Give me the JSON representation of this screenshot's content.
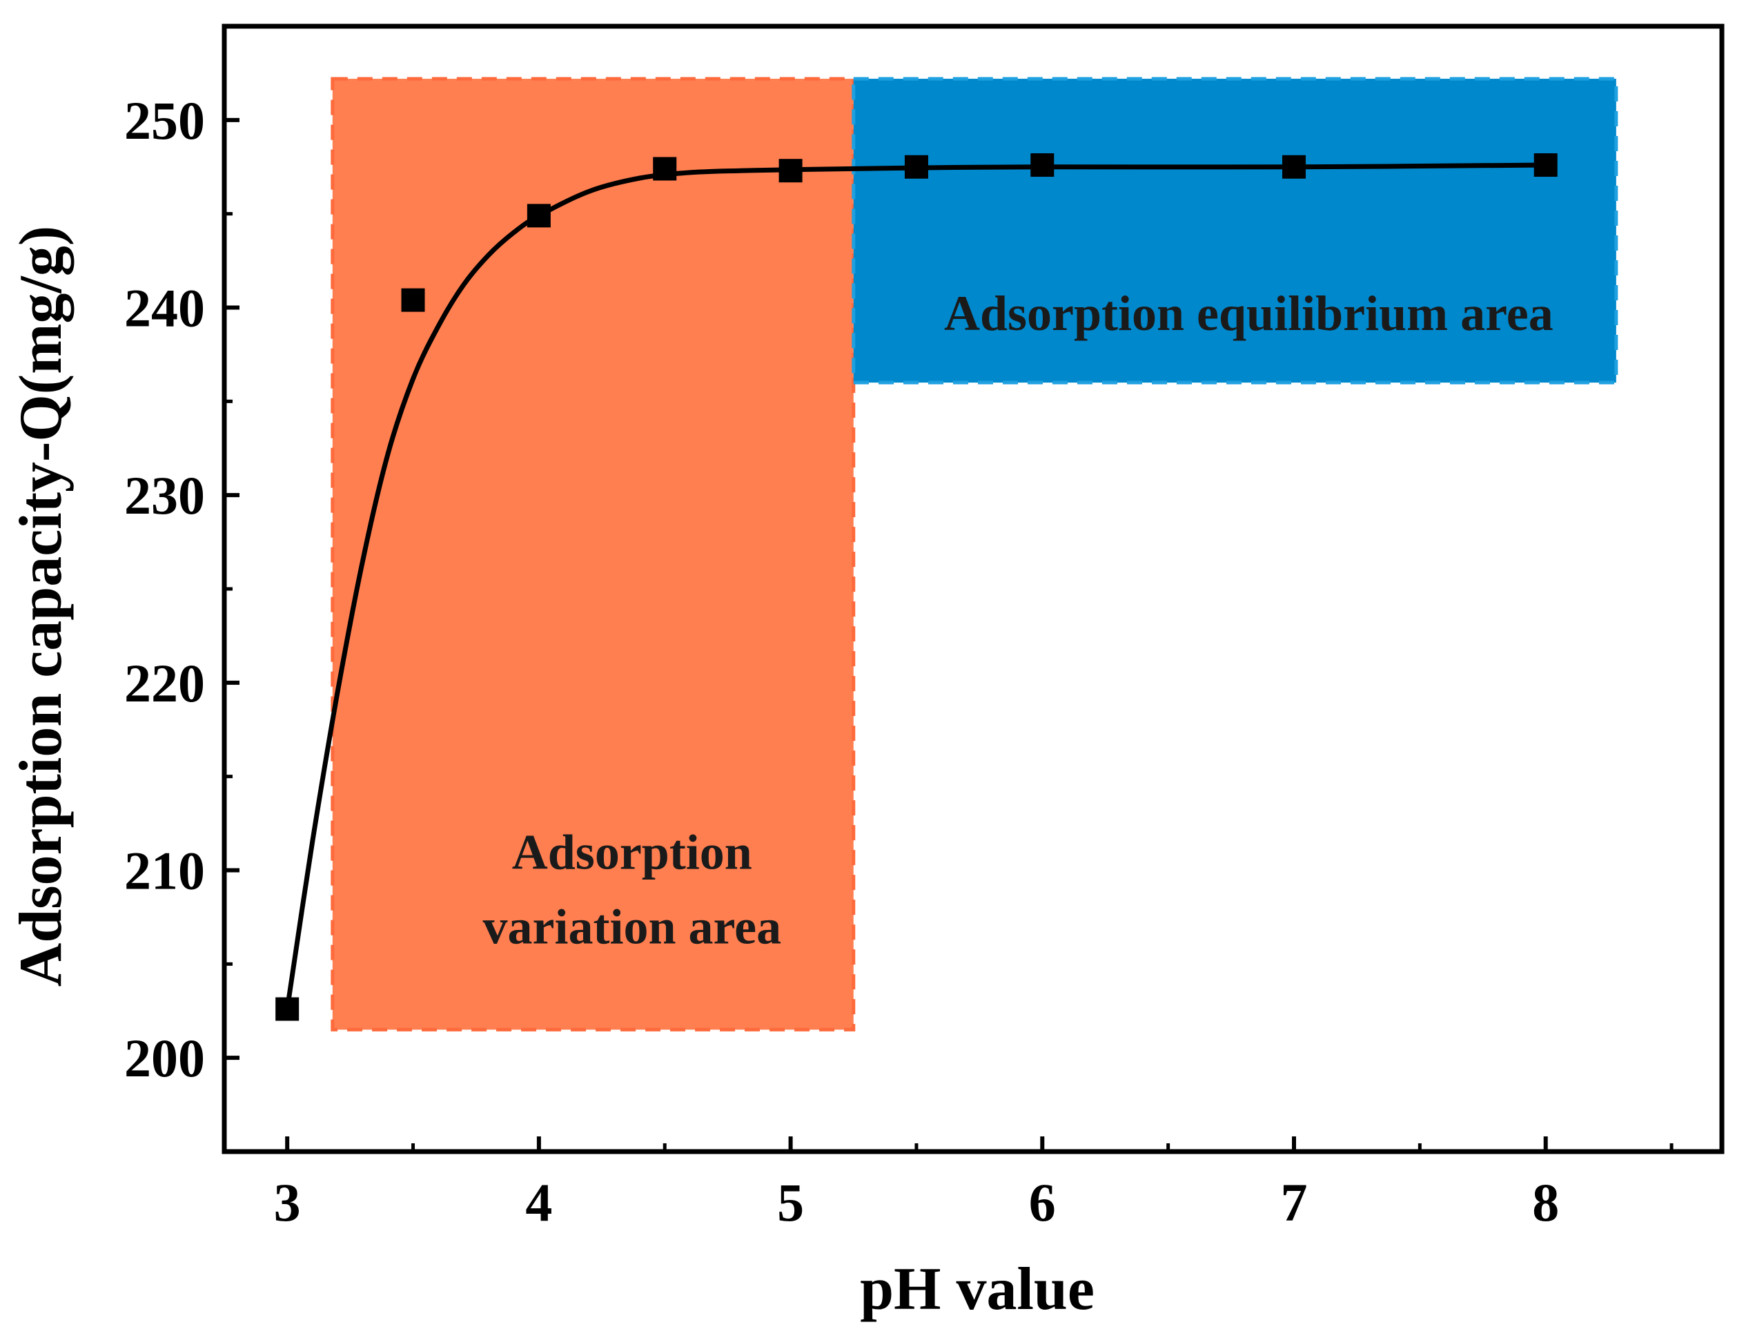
{
  "chart_data": {
    "type": "scatter",
    "title": "",
    "xlabel": "pH value",
    "ylabel": "Adsorption capacity-Q(mg/g)",
    "xlim": [
      2.75,
      8.7
    ],
    "ylim": [
      195,
      255
    ],
    "x_ticks": [
      3,
      4,
      5,
      6,
      7,
      8
    ],
    "x_tick_labels": [
      "3",
      "4",
      "5",
      "6",
      "7",
      "8"
    ],
    "x_minor_ticks": [
      3.5,
      4.5,
      5.5,
      6.5,
      7.5,
      8.5
    ],
    "y_ticks": [
      200,
      210,
      220,
      230,
      240,
      250
    ],
    "y_tick_labels": [
      "200",
      "210",
      "220",
      "230",
      "240",
      "250"
    ],
    "y_minor_ticks": [
      205,
      215,
      225,
      235,
      245
    ],
    "series": [
      {
        "name": "measured",
        "marker": "square",
        "color": "#000000",
        "x": [
          3,
          3.5,
          4,
          4.5,
          5,
          5.5,
          6,
          7,
          8
        ],
        "y": [
          202.6,
          240.4,
          244.9,
          247.4,
          247.3,
          247.5,
          247.6,
          247.5,
          247.6
        ]
      },
      {
        "name": "fit",
        "line": true,
        "color": "#000000",
        "x": [
          3.0,
          3.1,
          3.2,
          3.3,
          3.4,
          3.5,
          3.6,
          3.7,
          3.8,
          3.9,
          4.0,
          4.2,
          4.4,
          4.6,
          4.8,
          5.0,
          5.5,
          6.0,
          7.0,
          8.0
        ],
        "y": [
          202.6,
          211.5,
          219.5,
          226.5,
          232.2,
          236.2,
          239.0,
          241.2,
          242.8,
          244.0,
          244.9,
          246.2,
          246.9,
          247.2,
          247.3,
          247.35,
          247.45,
          247.5,
          247.5,
          247.6
        ]
      }
    ],
    "regions": [
      {
        "name": "variation",
        "label_lines": [
          "Adsorption",
          "variation area"
        ],
        "x_range": [
          3.18,
          5.25
        ],
        "y_range": [
          201.5,
          252.2
        ],
        "fill": "#FF7F50",
        "border": "#FF6A3C",
        "label_at": [
          4.37,
          206.1
        ]
      },
      {
        "name": "equilibrium",
        "label_lines": [
          "Adsorption equilibrium area"
        ],
        "x_range": [
          5.25,
          8.28
        ],
        "y_range": [
          236,
          252.2
        ],
        "fill": "#0088CC",
        "border": "#1FA0E0",
        "label_at": [
          6.82,
          238.8
        ]
      }
    ]
  }
}
